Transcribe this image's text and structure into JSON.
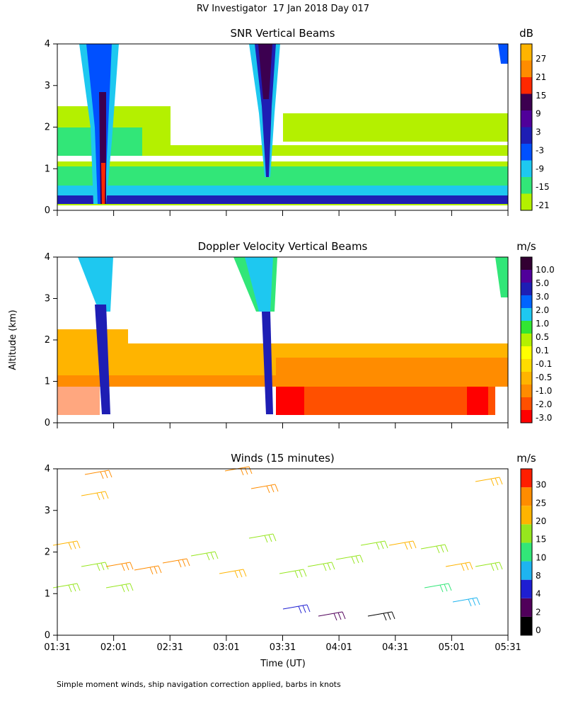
{
  "header": {
    "title": "RV Investigator  17 Jan 2018 Day 017"
  },
  "y_label": "Altitude (km)",
  "x_axis": {
    "label": "Time (UT)",
    "ticks": [
      "01:31",
      "02:01",
      "02:31",
      "03:01",
      "03:31",
      "04:01",
      "04:31",
      "05:01",
      "05:31"
    ]
  },
  "panels": [
    {
      "title": "SNR Vertical Beams",
      "ylim": [
        0,
        4
      ],
      "yticks": [
        0,
        1,
        2,
        3,
        4
      ],
      "colorbar": {
        "unit": "dB",
        "labels": [
          "-21",
          "-15",
          "-9",
          "-3",
          "3",
          "9",
          "15",
          "21",
          "27"
        ],
        "colors": [
          "#b4f000",
          "#32e678",
          "#1ec8f0",
          "#0050ff",
          "#1e1eb4",
          "#50009a",
          "#3c0050",
          "#ff2800",
          "#ff8c00",
          "#ffb400"
        ]
      }
    },
    {
      "title": "Doppler Velocity Vertical Beams",
      "ylim": [
        0,
        4
      ],
      "yticks": [
        0,
        1,
        2,
        3,
        4
      ],
      "colorbar": {
        "unit": "m/s",
        "labels": [
          "-3.0",
          "-2.0",
          "-1.0",
          "-0.5",
          "-0.1",
          "0.1",
          "0.5",
          "1.0",
          "2.0",
          "3.0",
          "5.0",
          "10.0"
        ],
        "colors": [
          "#ff0000",
          "#ff5000",
          "#ff8c00",
          "#ffb400",
          "#ffdc00",
          "#ffff00",
          "#b4f000",
          "#32e632",
          "#1ec8f0",
          "#0064ff",
          "#1e1eb4",
          "#50009a",
          "#320032"
        ]
      }
    },
    {
      "title": "Winds (15 minutes)",
      "ylim": [
        0,
        4
      ],
      "yticks": [
        0,
        1,
        2,
        3,
        4
      ],
      "colorbar": {
        "unit": "m/s",
        "labels": [
          "0",
          "2",
          "4",
          "8",
          "10",
          "15",
          "20",
          "25",
          "30"
        ],
        "colors": [
          "#000000",
          "#50005a",
          "#1e1ed2",
          "#1eb4f0",
          "#32e678",
          "#96e61e",
          "#ffb400",
          "#ff8c00",
          "#ff1e00"
        ]
      }
    }
  ],
  "footnote": "Simple moment winds, ship navigation correction applied, barbs in knots"
}
